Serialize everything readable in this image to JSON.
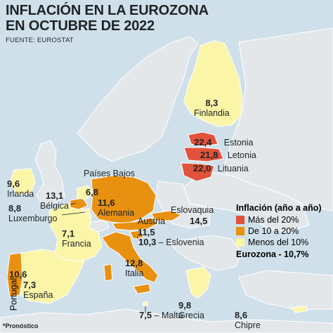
{
  "title_line1": "INFLACIÓN EN LA EUROZONA",
  "title_line2": "EN OCTUBRE DE 2022",
  "source": "FUENTE: EUROSTAT",
  "footnote": "*Pronóstico",
  "colors": {
    "sea": "#cfe0ea",
    "nonEuro": "#e3e7ea",
    "high": "#e1533b",
    "mid": "#e8900f",
    "low": "#fbf5a8",
    "border": "#ffffff"
  },
  "legend": {
    "title": "Inflación (año a año)",
    "items": [
      {
        "label": "Más del 20%",
        "color": "#e1533b"
      },
      {
        "label": "De 10 a 20%",
        "color": "#e8900f"
      },
      {
        "label": "Menos del 10%",
        "color": "#fbf5a8"
      }
    ],
    "eurozone": "Eurozona - 10,7%"
  },
  "countries": {
    "finland": {
      "value": "8,3",
      "name": "Finlandia",
      "category": "low"
    },
    "estonia": {
      "value": "22,4",
      "name": "Estonia",
      "category": "high"
    },
    "latvia": {
      "value": "21,8",
      "name": "Letonia",
      "category": "high"
    },
    "lithuania": {
      "value": "22,0",
      "name": "Lituania",
      "category": "high"
    },
    "ireland": {
      "value": "9,6",
      "name": "Irlanda",
      "category": "low"
    },
    "netherlands": {
      "value": "6,8",
      "name": "Países Bajos",
      "category": "low"
    },
    "belgium": {
      "value": "13,1",
      "name": "Bélgica",
      "category": "mid"
    },
    "luxembourg": {
      "value": "8,8",
      "name": "Luxemburgo",
      "category": "low"
    },
    "germany": {
      "value": "11,6",
      "name": "Alemania",
      "category": "mid"
    },
    "slovakia": {
      "value": "14,5",
      "name": "Eslovaquia",
      "category": "mid"
    },
    "austria": {
      "value": "11,5",
      "name": "Austria",
      "category": "mid"
    },
    "slovenia": {
      "value": "10,3",
      "name": "Eslovenia",
      "category": "mid"
    },
    "france": {
      "value": "7,1",
      "name": "Francia",
      "category": "low"
    },
    "italy": {
      "value": "12,8",
      "name": "Italia",
      "category": "mid"
    },
    "portugal": {
      "value": "10,6",
      "name": "Portugal",
      "category": "mid"
    },
    "spain": {
      "value": "7,3",
      "name": "España",
      "category": "low"
    },
    "greece": {
      "value": "9,8",
      "name": "Grecia",
      "category": "low"
    },
    "malta": {
      "value": "7,5",
      "name": "Malta",
      "category": "low"
    },
    "cyprus": {
      "value": "8,6",
      "name": "Chipre",
      "category": "low"
    }
  },
  "slovenia_separator": "–",
  "malta_separator": "–"
}
